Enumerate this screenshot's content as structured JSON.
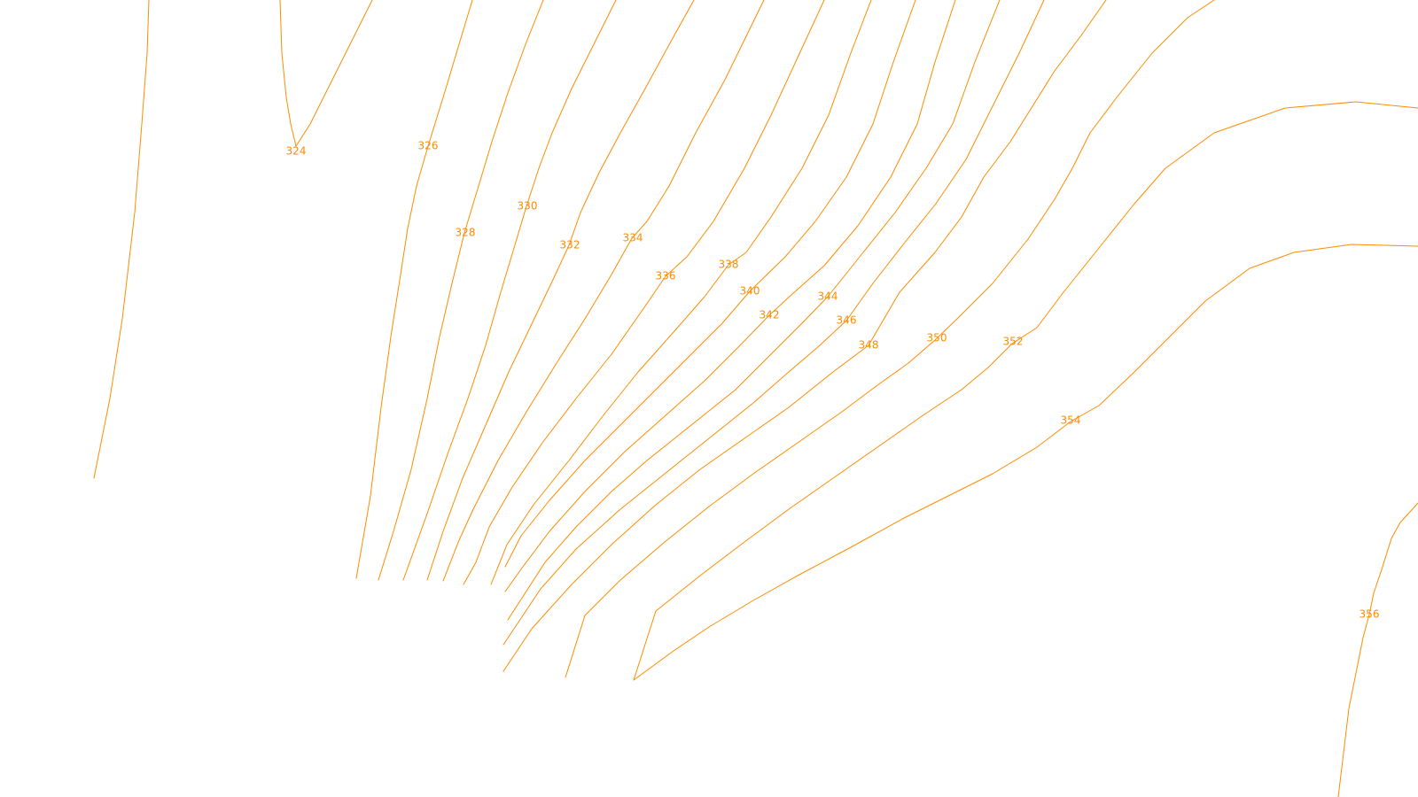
{
  "map": {
    "line_color": "#ff8c00",
    "background": "#ffffff",
    "contour_labels": [
      "324",
      "326",
      "328",
      "330",
      "332",
      "334",
      "336",
      "338",
      "340",
      "342",
      "344",
      "346",
      "348",
      "350",
      "352",
      "354",
      "356"
    ]
  }
}
